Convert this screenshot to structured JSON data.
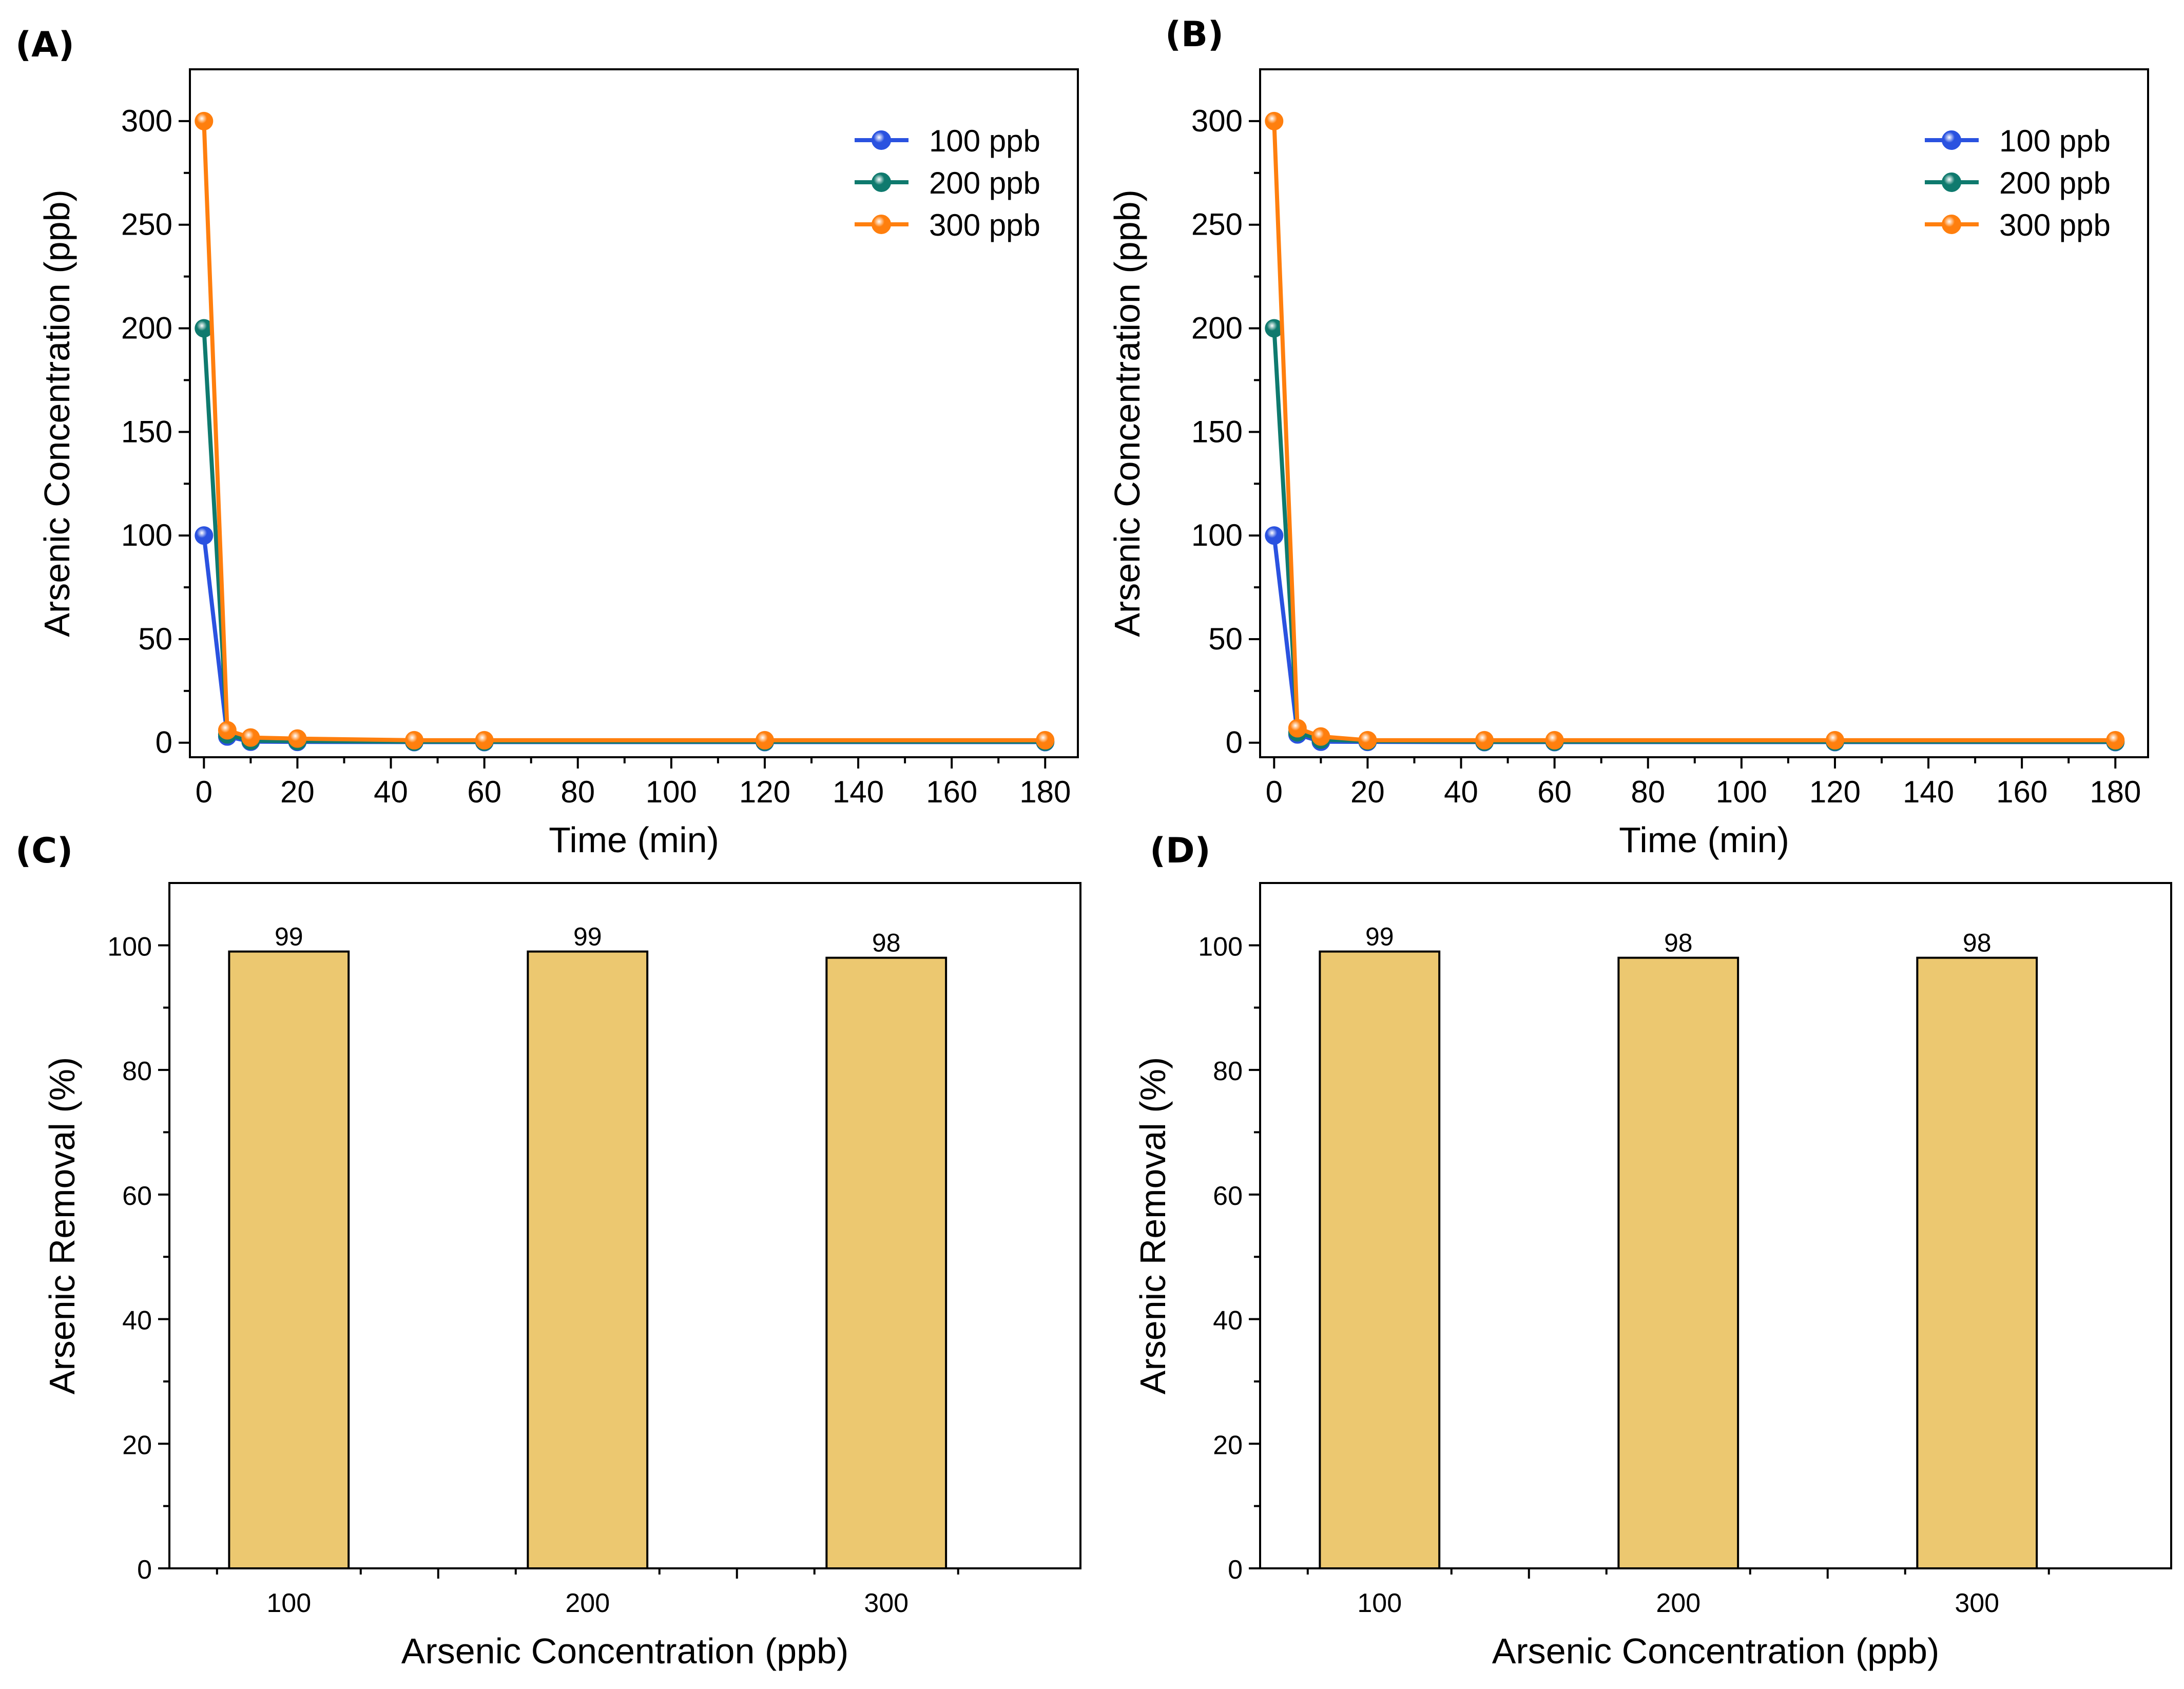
{
  "chart_data": [
    {
      "panel": "(A)",
      "type": "line",
      "xlabel": "Time (min)",
      "ylabel": "Arsenic Concentration (ppb)",
      "xlim": [
        -3,
        187
      ],
      "ylim": [
        -7,
        325
      ],
      "xticks": [
        0,
        20,
        40,
        60,
        80,
        100,
        120,
        140,
        160,
        180
      ],
      "yticks": [
        0,
        50,
        100,
        150,
        200,
        250,
        300
      ],
      "x": [
        0,
        5,
        10,
        20,
        45,
        60,
        120,
        180
      ],
      "legend_position": "top-right",
      "series": [
        {
          "name": "100 ppb",
          "color": "#2a52e0",
          "values": [
            100,
            3,
            0.5,
            0.4,
            0.3,
            0.3,
            0.3,
            0.3
          ]
        },
        {
          "name": "200 ppb",
          "color": "#0f7a6e",
          "values": [
            200,
            4,
            1,
            0.8,
            0.5,
            0.5,
            0.5,
            0.5
          ]
        },
        {
          "name": "300 ppb",
          "color": "#ff7f0e",
          "values": [
            300,
            6,
            2.5,
            2,
            1.2,
            1.2,
            1.2,
            1.2
          ]
        }
      ]
    },
    {
      "panel": "(B)",
      "type": "line",
      "xlabel": "Time (min)",
      "ylabel": "Arsenic Concentration (ppb)",
      "xlim": [
        -3,
        187
      ],
      "ylim": [
        -7,
        325
      ],
      "xticks": [
        0,
        20,
        40,
        60,
        80,
        100,
        120,
        140,
        160,
        180
      ],
      "yticks": [
        0,
        50,
        100,
        150,
        200,
        250,
        300
      ],
      "x": [
        0,
        5,
        10,
        20,
        45,
        60,
        120,
        180
      ],
      "legend_position": "top-right",
      "series": [
        {
          "name": "100 ppb",
          "color": "#2a52e0",
          "values": [
            100,
            4,
            0.5,
            0.4,
            0.3,
            0.3,
            0.3,
            0.3
          ]
        },
        {
          "name": "200 ppb",
          "color": "#0f7a6e",
          "values": [
            200,
            5,
            1.5,
            0.8,
            0.5,
            0.5,
            0.5,
            0.5
          ]
        },
        {
          "name": "300 ppb",
          "color": "#ff7f0e",
          "values": [
            300,
            7,
            3,
            1.2,
            1.2,
            1.2,
            1.2,
            1.2
          ]
        }
      ]
    },
    {
      "panel": "(C)",
      "type": "bar",
      "xlabel": "Arsenic Concentration (ppb)",
      "ylabel": "Arsenic Removal (%)",
      "ylim": [
        0,
        110
      ],
      "yticks": [
        0,
        20,
        40,
        60,
        80,
        100
      ],
      "categories": [
        "100",
        "200",
        "300"
      ],
      "values": [
        99,
        99,
        98
      ],
      "data_labels": [
        "99",
        "99",
        "98"
      ],
      "bar_color": "#ecc870"
    },
    {
      "panel": "(D)",
      "type": "bar",
      "xlabel": "Arsenic Concentration (ppb)",
      "ylabel": "Arsenic Removal (%)",
      "ylim": [
        0,
        110
      ],
      "yticks": [
        0,
        20,
        40,
        60,
        80,
        100
      ],
      "categories": [
        "100",
        "200",
        "300"
      ],
      "values": [
        99,
        98,
        98
      ],
      "data_labels": [
        "99",
        "98",
        "98"
      ],
      "bar_color": "#ecc870"
    }
  ]
}
